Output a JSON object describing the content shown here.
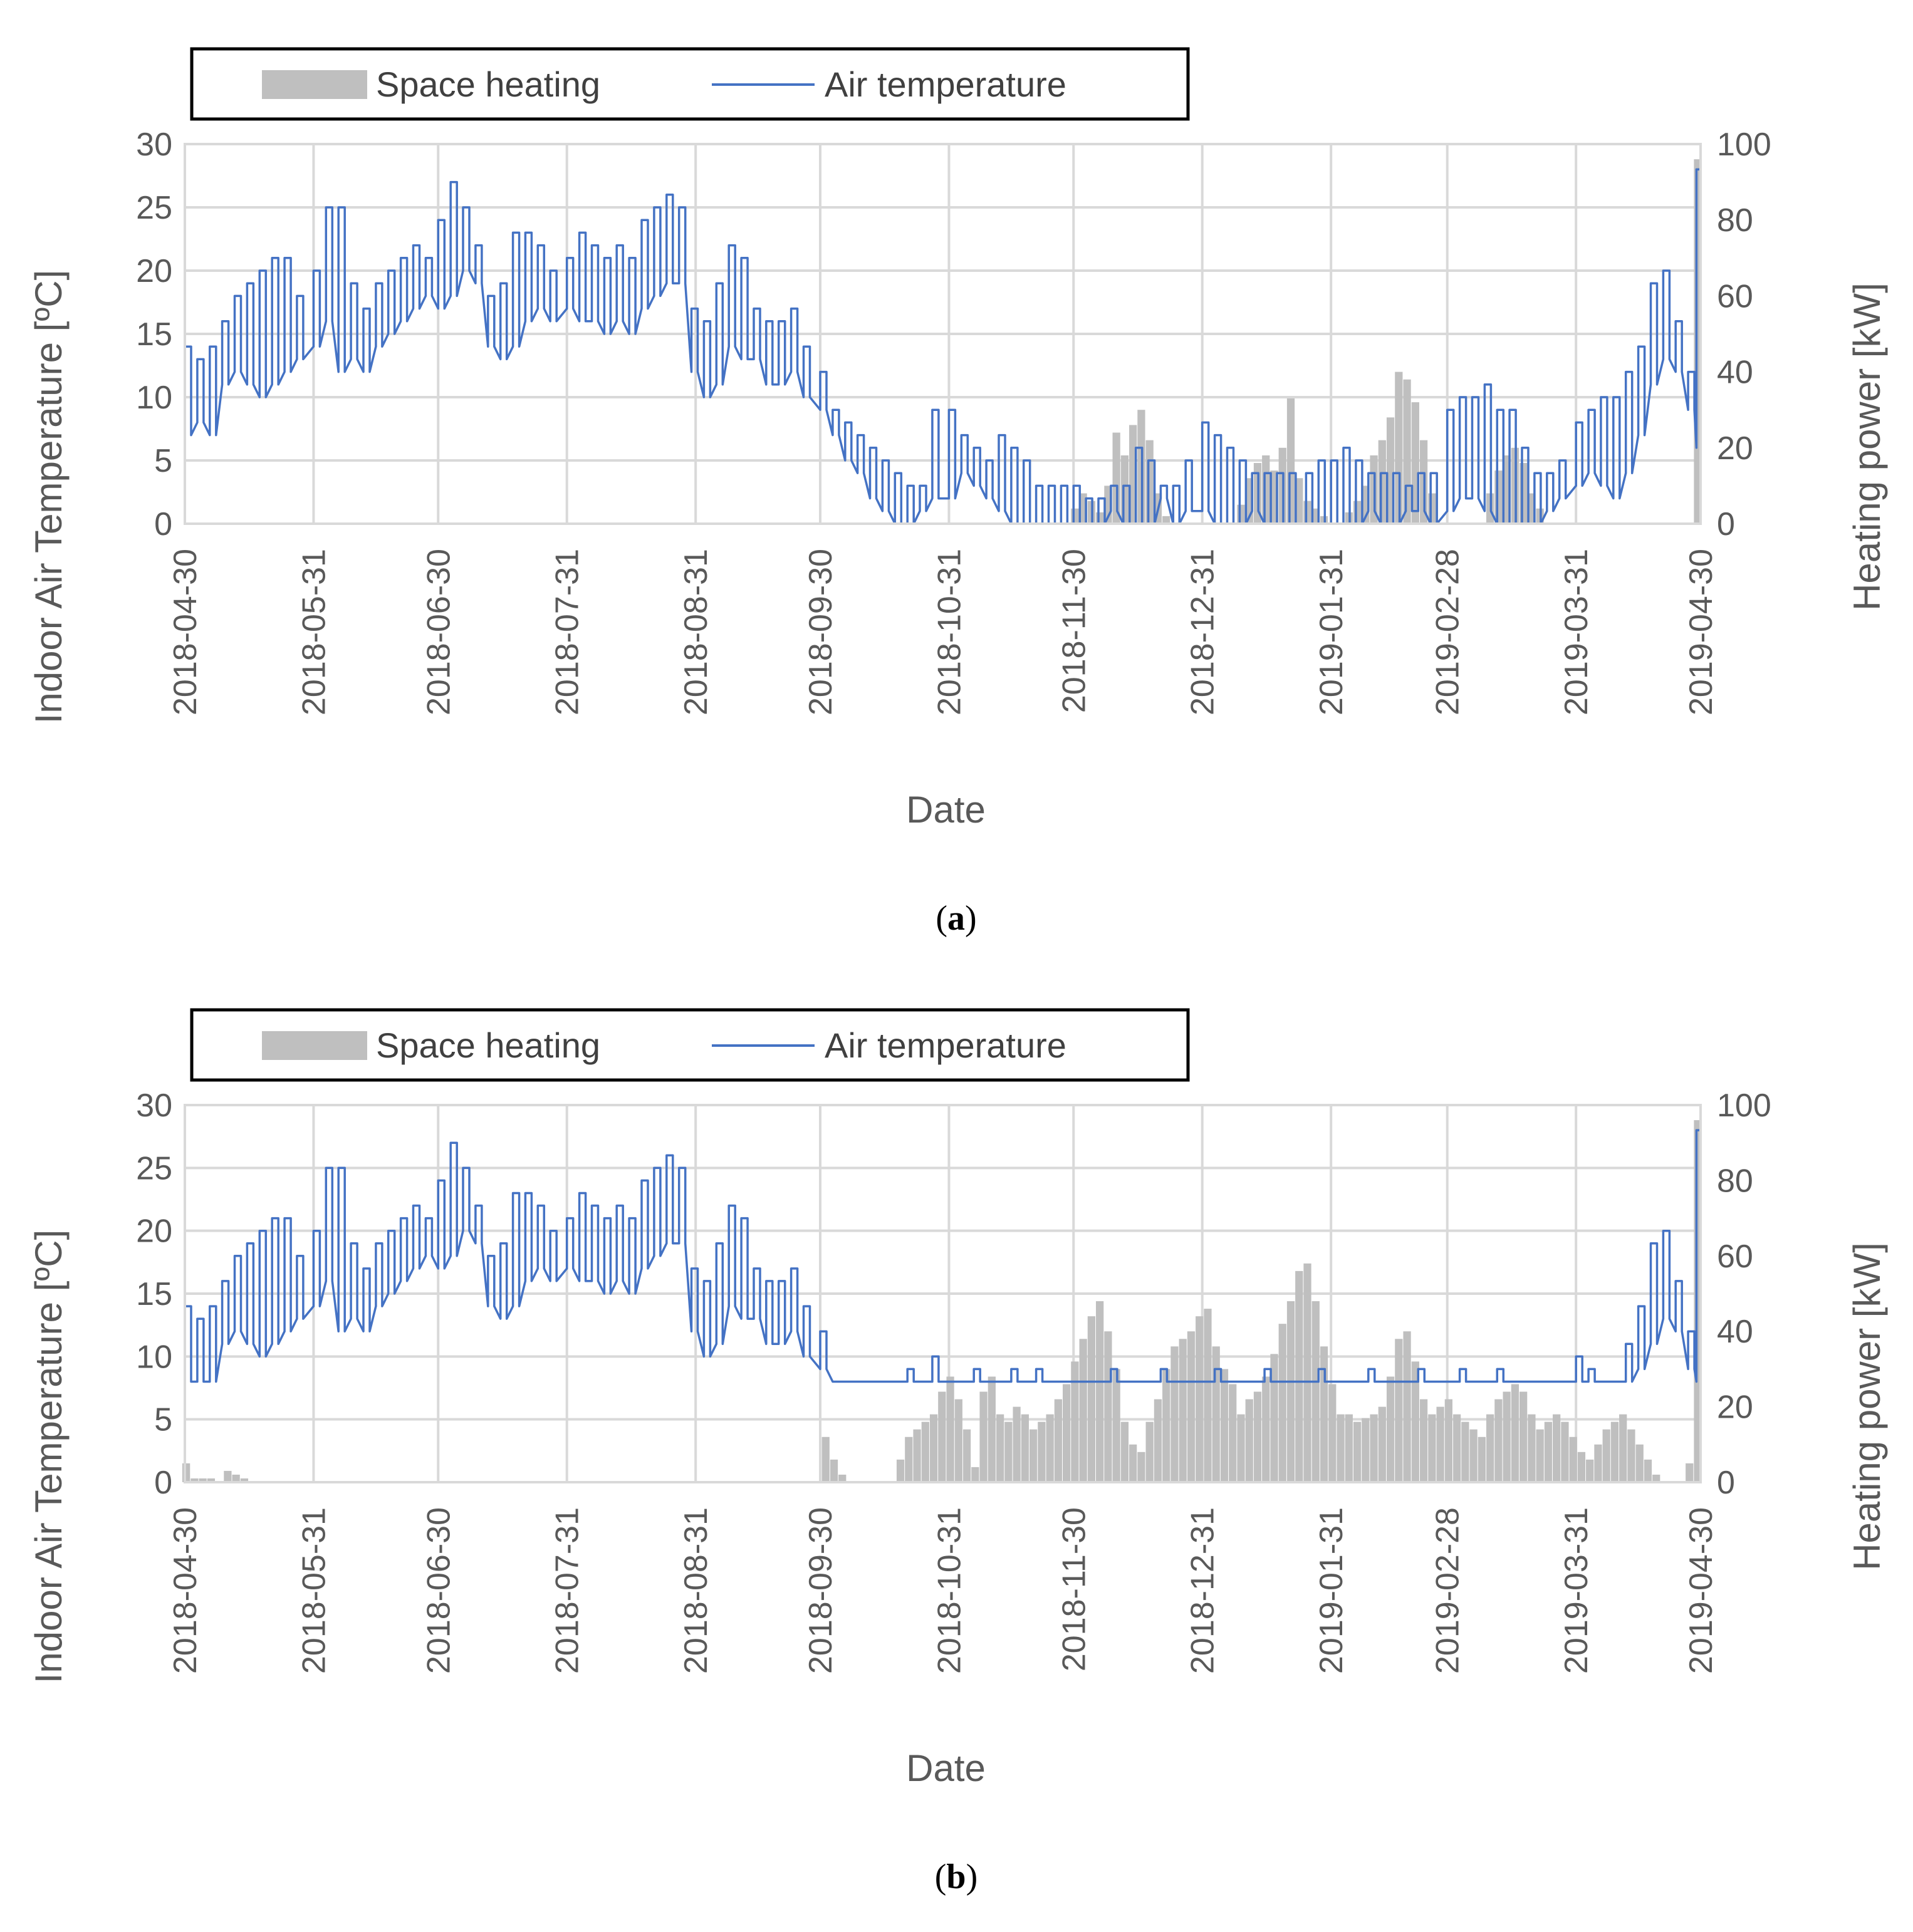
{
  "colors": {
    "heating": "#bfbfbf",
    "temperature": "#4472c4",
    "grid": "#d9d9d9",
    "axis_text": "#595959"
  },
  "icons": [
    "legend-heating-swatch",
    "legend-temperature-swatch"
  ],
  "chart_data": [
    {
      "type": "line+bar",
      "caption": "(a)",
      "caption_letter": "a",
      "legend": {
        "heating": "Space heating",
        "temperature": "Air temperature"
      },
      "xlabel": "Date",
      "ylabel_left": "Indoor Air Temperature [ºC]",
      "ylabel_right": "Heating power [kW]",
      "x_ticks": [
        "2018-04-30",
        "2018-05-31",
        "2018-06-30",
        "2018-07-31",
        "2018-08-31",
        "2018-09-30",
        "2018-10-31",
        "2018-11-30",
        "2018-12-31",
        "2019-01-31",
        "2019-02-28",
        "2019-03-31",
        "2019-04-30"
      ],
      "x_tick_days": [
        0,
        31,
        61,
        92,
        123,
        153,
        184,
        214,
        245,
        276,
        304,
        335,
        365
      ],
      "y_left_ticks": [
        "0",
        "5",
        "10",
        "15",
        "20",
        "25",
        "30"
      ],
      "y_right_ticks": [
        "0",
        "20",
        "40",
        "60",
        "80",
        "100"
      ],
      "ylim_left": [
        0,
        30
      ],
      "ylim_right": [
        0,
        100
      ],
      "xlim_days": [
        0,
        365
      ],
      "temperature_series": {
        "name": "Air temperature",
        "day": [
          0,
          3,
          6,
          9,
          12,
          15,
          18,
          21,
          24,
          27,
          31,
          34,
          37,
          40,
          43,
          46,
          49,
          52,
          55,
          58,
          61,
          64,
          67,
          70,
          73,
          76,
          79,
          82,
          85,
          88,
          92,
          95,
          98,
          101,
          104,
          107,
          110,
          113,
          116,
          119,
          122,
          125,
          128,
          131,
          134,
          137,
          140,
          143,
          146,
          149,
          153,
          156,
          159,
          162,
          165,
          168,
          171,
          174,
          177,
          180,
          184,
          187,
          190,
          193,
          196,
          199,
          202,
          205,
          208,
          211,
          214,
          217,
          220,
          223,
          226,
          229,
          232,
          235,
          238,
          241,
          245,
          248,
          251,
          254,
          257,
          260,
          263,
          266,
          270,
          273,
          276,
          279,
          282,
          285,
          288,
          291,
          294,
          297,
          300,
          304,
          307,
          310,
          313,
          316,
          319,
          322,
          325,
          328,
          331,
          335,
          338,
          341,
          344,
          347,
          350,
          353,
          356,
          359,
          362,
          364
        ],
        "min": [
          7,
          8,
          7,
          11,
          12,
          11,
          10,
          11,
          12,
          13,
          14,
          16,
          12,
          13,
          12,
          14,
          15,
          16,
          17,
          18,
          17,
          18,
          20,
          19,
          14,
          13,
          14,
          16,
          17,
          16,
          17,
          16,
          16,
          15,
          16,
          15,
          17,
          18,
          19,
          19,
          12,
          10,
          11,
          14,
          13,
          13,
          11,
          11,
          12,
          10,
          9,
          7,
          5,
          4,
          2,
          1,
          0,
          0,
          1,
          2,
          2,
          4,
          3,
          2,
          1,
          0,
          0,
          0,
          0,
          0,
          0,
          0,
          0,
          1,
          0,
          0,
          0,
          2,
          0,
          1,
          1,
          0,
          0,
          0,
          1,
          0,
          0,
          0,
          0,
          0,
          0,
          0,
          0,
          1,
          0,
          0,
          1,
          1,
          0,
          1,
          2,
          2,
          1,
          0,
          0,
          0,
          0,
          1,
          2,
          3,
          4,
          3,
          2,
          4,
          7,
          11,
          13,
          12,
          9,
          6
        ],
        "max": [
          14,
          13,
          14,
          16,
          18,
          19,
          20,
          21,
          21,
          18,
          20,
          25,
          25,
          19,
          17,
          19,
          20,
          21,
          22,
          21,
          24,
          27,
          25,
          22,
          18,
          19,
          23,
          23,
          22,
          20,
          21,
          23,
          22,
          21,
          22,
          21,
          24,
          25,
          26,
          25,
          17,
          16,
          19,
          22,
          21,
          17,
          16,
          16,
          17,
          14,
          12,
          9,
          8,
          7,
          6,
          5,
          4,
          3,
          3,
          9,
          9,
          7,
          6,
          5,
          7,
          6,
          5,
          3,
          3,
          3,
          3,
          2,
          2,
          3,
          3,
          6,
          5,
          3,
          3,
          5,
          8,
          7,
          6,
          5,
          4,
          4,
          4,
          4,
          4,
          5,
          5,
          6,
          5,
          4,
          4,
          4,
          3,
          4,
          4,
          9,
          10,
          10,
          11,
          9,
          9,
          6,
          4,
          4,
          5,
          8,
          9,
          10,
          10,
          12,
          14,
          19,
          20,
          16,
          12,
          28
        ]
      },
      "heating_series": {
        "name": "Space heating",
        "day": [
          210,
          212,
          214,
          216,
          218,
          220,
          222,
          224,
          226,
          228,
          230,
          232,
          234,
          236,
          238,
          240,
          242,
          244,
          246,
          248,
          250,
          252,
          254,
          256,
          258,
          260,
          262,
          264,
          266,
          268,
          270,
          272,
          274,
          276,
          278,
          280,
          282,
          284,
          286,
          288,
          290,
          292,
          294,
          296,
          298,
          300,
          302,
          304,
          306,
          308,
          310,
          312,
          314,
          316,
          318,
          320,
          322,
          324,
          326,
          328,
          330,
          332,
          334,
          336,
          338,
          340,
          342,
          344,
          346,
          348,
          350,
          352,
          354,
          356,
          358,
          360,
          362,
          364
        ],
        "kw": [
          0,
          0,
          4,
          8,
          6,
          3,
          10,
          24,
          18,
          26,
          30,
          22,
          8,
          2,
          0,
          0,
          0,
          0,
          0,
          0,
          0,
          0,
          5,
          12,
          16,
          18,
          14,
          20,
          33,
          12,
          6,
          4,
          2,
          0,
          0,
          3,
          6,
          10,
          18,
          22,
          28,
          40,
          38,
          32,
          22,
          8,
          0,
          0,
          0,
          0,
          0,
          0,
          8,
          14,
          18,
          20,
          16,
          8,
          4,
          0,
          0,
          0,
          0,
          0,
          0,
          0,
          0,
          0,
          0,
          0,
          0,
          0,
          0,
          0,
          0,
          0,
          0,
          96
        ]
      }
    },
    {
      "type": "line+bar",
      "caption": "(b)",
      "caption_letter": "b",
      "legend": {
        "heating": "Space heating",
        "temperature": "Air temperature"
      },
      "xlabel": "Date",
      "ylabel_left": "Indoor Air Temperature [ºC]",
      "ylabel_right": "Heating power [kW]",
      "x_ticks": [
        "2018-04-30",
        "2018-05-31",
        "2018-06-30",
        "2018-07-31",
        "2018-08-31",
        "2018-09-30",
        "2018-10-31",
        "2018-11-30",
        "2018-12-31",
        "2019-01-31",
        "2019-02-28",
        "2019-03-31",
        "2019-04-30"
      ],
      "x_tick_days": [
        0,
        31,
        61,
        92,
        123,
        153,
        184,
        214,
        245,
        276,
        304,
        335,
        365
      ],
      "y_left_ticks": [
        "0",
        "5",
        "10",
        "15",
        "20",
        "25",
        "30"
      ],
      "y_right_ticks": [
        "0",
        "20",
        "40",
        "60",
        "80",
        "100"
      ],
      "ylim_left": [
        0,
        30
      ],
      "ylim_right": [
        0,
        100
      ],
      "xlim_days": [
        0,
        365
      ],
      "temperature_series": {
        "name": "Air temperature",
        "day": [
          0,
          3,
          6,
          9,
          12,
          15,
          18,
          21,
          24,
          27,
          31,
          34,
          37,
          40,
          43,
          46,
          49,
          52,
          55,
          58,
          61,
          64,
          67,
          70,
          73,
          76,
          79,
          82,
          85,
          88,
          92,
          95,
          98,
          101,
          104,
          107,
          110,
          113,
          116,
          119,
          122,
          125,
          128,
          131,
          134,
          137,
          140,
          143,
          146,
          149,
          153,
          156,
          159,
          162,
          165,
          168,
          171,
          174,
          177,
          180,
          184,
          187,
          190,
          193,
          196,
          199,
          202,
          205,
          208,
          211,
          214,
          217,
          220,
          223,
          226,
          229,
          232,
          235,
          238,
          241,
          245,
          248,
          251,
          254,
          257,
          260,
          263,
          266,
          270,
          273,
          276,
          279,
          282,
          285,
          288,
          291,
          294,
          297,
          300,
          304,
          307,
          310,
          313,
          316,
          319,
          322,
          325,
          328,
          331,
          335,
          338,
          341,
          344,
          347,
          350,
          353,
          356,
          359,
          362,
          364
        ],
        "min": [
          8,
          8,
          8,
          11,
          12,
          11,
          10,
          11,
          12,
          13,
          14,
          16,
          12,
          13,
          12,
          14,
          15,
          16,
          17,
          18,
          17,
          18,
          20,
          19,
          14,
          13,
          14,
          16,
          17,
          16,
          17,
          16,
          16,
          15,
          16,
          15,
          17,
          18,
          19,
          19,
          12,
          10,
          11,
          14,
          13,
          13,
          11,
          11,
          12,
          10,
          9,
          8,
          8,
          8,
          8,
          8,
          8,
          8,
          8,
          8,
          8,
          8,
          8,
          8,
          8,
          8,
          8,
          8,
          8,
          8,
          8,
          8,
          8,
          8,
          8,
          8,
          8,
          8,
          8,
          8,
          8,
          8,
          8,
          8,
          8,
          8,
          8,
          8,
          8,
          8,
          8,
          8,
          8,
          8,
          8,
          8,
          8,
          8,
          8,
          8,
          8,
          8,
          8,
          8,
          8,
          8,
          8,
          8,
          8,
          8,
          8,
          8,
          8,
          8,
          9,
          11,
          13,
          12,
          9,
          8
        ],
        "max": [
          14,
          13,
          14,
          16,
          18,
          19,
          20,
          21,
          21,
          18,
          20,
          25,
          25,
          19,
          17,
          19,
          20,
          21,
          22,
          21,
          24,
          27,
          25,
          22,
          18,
          19,
          23,
          23,
          22,
          20,
          21,
          23,
          22,
          21,
          22,
          21,
          24,
          25,
          26,
          25,
          17,
          16,
          19,
          22,
          21,
          17,
          16,
          16,
          17,
          14,
          12,
          8,
          8,
          8,
          8,
          8,
          8,
          9,
          8,
          10,
          8,
          8,
          9,
          8,
          8,
          9,
          8,
          9,
          8,
          8,
          8,
          8,
          8,
          9,
          8,
          8,
          8,
          9,
          8,
          8,
          8,
          9,
          8,
          8,
          8,
          9,
          8,
          8,
          8,
          9,
          8,
          8,
          8,
          9,
          8,
          8,
          8,
          9,
          8,
          8,
          9,
          8,
          8,
          9,
          8,
          8,
          8,
          8,
          8,
          10,
          9,
          8,
          8,
          11,
          14,
          19,
          20,
          16,
          12,
          28
        ]
      },
      "heating_series": {
        "name": "Space heating",
        "day": [
          0,
          2,
          4,
          6,
          8,
          10,
          12,
          14,
          16,
          18,
          20,
          150,
          152,
          154,
          156,
          158,
          160,
          162,
          164,
          166,
          168,
          170,
          172,
          174,
          176,
          178,
          180,
          182,
          184,
          186,
          188,
          190,
          192,
          194,
          196,
          198,
          200,
          202,
          204,
          206,
          208,
          210,
          212,
          214,
          216,
          218,
          220,
          222,
          224,
          226,
          228,
          230,
          232,
          234,
          236,
          238,
          240,
          242,
          244,
          246,
          248,
          250,
          252,
          254,
          256,
          258,
          260,
          262,
          264,
          266,
          268,
          270,
          272,
          274,
          276,
          278,
          280,
          282,
          284,
          286,
          288,
          290,
          292,
          294,
          296,
          298,
          300,
          302,
          304,
          306,
          308,
          310,
          312,
          314,
          316,
          318,
          320,
          322,
          324,
          326,
          328,
          330,
          332,
          334,
          336,
          338,
          340,
          342,
          344,
          346,
          348,
          350,
          352,
          354,
          356,
          358,
          360,
          362,
          364
        ],
        "kw": [
          5,
          1,
          1,
          1,
          0,
          3,
          2,
          1,
          0,
          0,
          0,
          0,
          0,
          12,
          6,
          2,
          0,
          0,
          0,
          0,
          0,
          0,
          6,
          12,
          14,
          16,
          18,
          24,
          28,
          22,
          14,
          4,
          24,
          28,
          18,
          16,
          20,
          18,
          14,
          16,
          18,
          22,
          26,
          32,
          38,
          44,
          48,
          40,
          30,
          16,
          10,
          8,
          16,
          22,
          30,
          36,
          38,
          40,
          44,
          46,
          36,
          30,
          26,
          18,
          22,
          24,
          28,
          34,
          42,
          48,
          56,
          58,
          48,
          36,
          26,
          18,
          18,
          16,
          17,
          18,
          20,
          28,
          38,
          40,
          32,
          22,
          18,
          20,
          22,
          18,
          16,
          14,
          12,
          18,
          22,
          24,
          26,
          24,
          18,
          14,
          16,
          18,
          16,
          12,
          8,
          6,
          10,
          14,
          16,
          18,
          14,
          10,
          6,
          2,
          0,
          0,
          0,
          5,
          96
        ]
      }
    }
  ]
}
